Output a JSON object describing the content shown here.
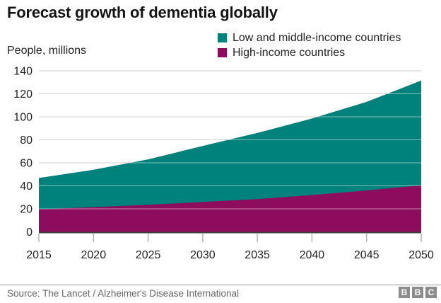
{
  "title": "Forecast growth of dementia globally",
  "y_axis_title": "People, millions",
  "legend": [
    {
      "label": "Low and middle-income countries",
      "color": "#00827C"
    },
    {
      "label": "High-income countries",
      "color": "#8E0C5E"
    }
  ],
  "source": "Source: The Lancet / Alzheimer's Disease International",
  "logo": {
    "letters": [
      "B",
      "B",
      "C"
    ],
    "block_color": "#8C8C8C"
  },
  "colors": {
    "low_middle_income": "#00827C",
    "high_income": "#8E0C5E",
    "grid": "#cfcfcf",
    "grid_overlay": "rgba(255,255,255,0.5)",
    "axis_line": "#404040",
    "tick": "#b3b3b3",
    "text": "#222222"
  },
  "chart_data": {
    "type": "area",
    "stacked": true,
    "title": "Forecast growth of dementia globally",
    "xlabel": "",
    "ylabel": "People, millions",
    "x": [
      2015,
      2020,
      2025,
      2030,
      2035,
      2040,
      2045,
      2050
    ],
    "series": [
      {
        "name": "High-income countries",
        "color": "#8E0C5E",
        "values": [
          19.5,
          21.5,
          23.5,
          26.0,
          28.5,
          32.0,
          36.0,
          40.5
        ]
      },
      {
        "name": "Low and middle-income countries",
        "color": "#00827C",
        "values": [
          27.3,
          32.5,
          39.5,
          48.7,
          57.5,
          66.5,
          77.0,
          91.0
        ]
      }
    ],
    "stacked_totals": [
      46.8,
      54.0,
      63.0,
      74.7,
      86.0,
      98.5,
      113.0,
      131.5
    ],
    "ylim": [
      0,
      140
    ],
    "y_ticks": [
      0,
      20,
      40,
      60,
      80,
      100,
      120,
      140
    ],
    "x_ticks": [
      2015,
      2020,
      2025,
      2030,
      2035,
      2040,
      2045,
      2050
    ],
    "grid": true,
    "legend_position": "top-right"
  }
}
